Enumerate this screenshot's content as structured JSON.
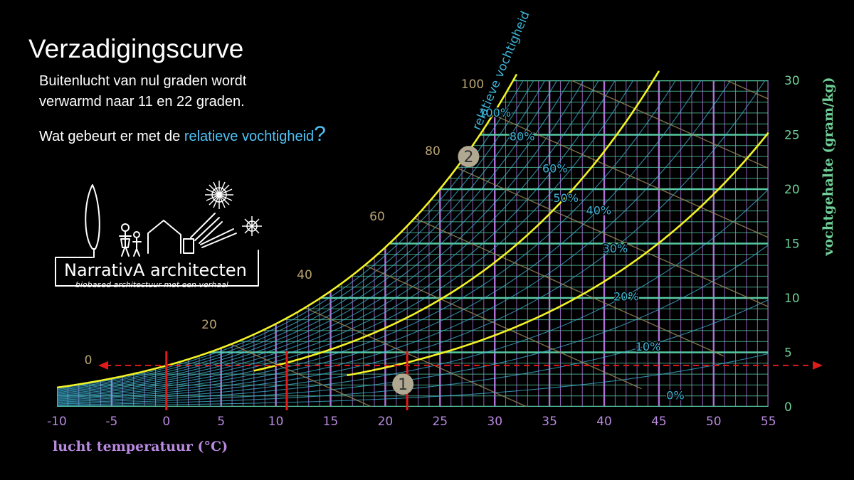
{
  "slide": {
    "title": "Verzadigingscurve",
    "intro_line1": "Buitenlucht van nul graden wordt",
    "intro_line2": "verwarmd naar 11 en 22 graden.",
    "question_prefix": "Wat gebeurt er met de ",
    "question_highlight": "relatieve vochtigheid",
    "question_mark": "?"
  },
  "logo": {
    "name": "NarrativA architecten",
    "tagline": "biobased architectuur met een verhaal"
  },
  "colors": {
    "background": "#000000",
    "temp_grid": "#b06fd6",
    "humidity_grid": "#57c9a3",
    "rh_curves": "#3fb4d8",
    "saturation_curve": "#f2f226",
    "highlight_curves": "#f2f226",
    "enthalpy_lines": "#9b8a5a",
    "markers": "#e01b1b",
    "badges": "#b0a890",
    "axis_x_labels": "#b88ae0",
    "axis_y_labels": "#6fcf97",
    "enthalpy_labels": "#b9a574"
  },
  "chart_data": {
    "type": "psychrometric",
    "x": {
      "label": "lucht temperatuur (°C)",
      "range": [
        -10,
        55
      ],
      "ticks": [
        -10,
        -5,
        0,
        5,
        10,
        15,
        20,
        25,
        30,
        35,
        40,
        45,
        50,
        55
      ]
    },
    "y": {
      "label": "vochtgehalte (gram/kg)",
      "range": [
        0,
        30
      ],
      "ticks": [
        0,
        5,
        10,
        15,
        20,
        25,
        30
      ]
    },
    "rh_curve_label": "relatieve vochtigheid",
    "rh_curves": [
      {
        "rh": 100,
        "label": "100%"
      },
      {
        "rh": 80,
        "label": "80%"
      },
      {
        "rh": 60,
        "label": "60%"
      },
      {
        "rh": 50,
        "label": "50%"
      },
      {
        "rh": 40,
        "label": "40%"
      },
      {
        "rh": 30,
        "label": "30%"
      },
      {
        "rh": 20,
        "label": "20%"
      },
      {
        "rh": 10,
        "label": "10%"
      },
      {
        "rh": 0,
        "label": "0%"
      }
    ],
    "enthalpy_labels": [
      "0",
      "20",
      "40",
      "60",
      "80",
      "100"
    ],
    "highlight_rh_curves": [
      100,
      50,
      25
    ],
    "moisture_content_line": 3.8,
    "temperature_markers": [
      0,
      11,
      22
    ],
    "badges": [
      {
        "label": "1",
        "temp": 22,
        "rh": 22
      },
      {
        "label": "2",
        "temp": 28,
        "rh": 100
      }
    ]
  }
}
